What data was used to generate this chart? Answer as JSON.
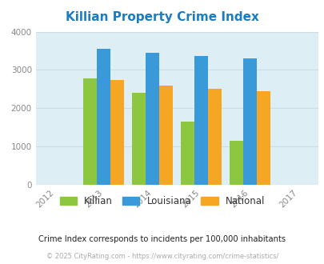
{
  "title": "Killian Property Crime Index",
  "years": [
    2013,
    2014,
    2015,
    2016
  ],
  "x_ticks": [
    2012,
    2013,
    2014,
    2015,
    2016,
    2017
  ],
  "killian": [
    2780,
    2400,
    1660,
    1140
  ],
  "louisiana": [
    3560,
    3450,
    3360,
    3310
  ],
  "national": [
    2730,
    2600,
    2510,
    2450
  ],
  "color_killian": "#8dc63f",
  "color_louisiana": "#3a99d8",
  "color_national": "#f5a623",
  "ylim": [
    0,
    4000
  ],
  "yticks": [
    0,
    1000,
    2000,
    3000,
    4000
  ],
  "plot_bg": "#ddeef4",
  "grid_color": "#c8dde6",
  "title_color": "#1a7cc1",
  "subtitle": "Crime Index corresponds to incidents per 100,000 inhabitants",
  "footer": "© 2025 CityRating.com - https://www.cityrating.com/crime-statistics/",
  "legend_labels": [
    "Killian",
    "Louisiana",
    "National"
  ],
  "bar_width": 0.28
}
